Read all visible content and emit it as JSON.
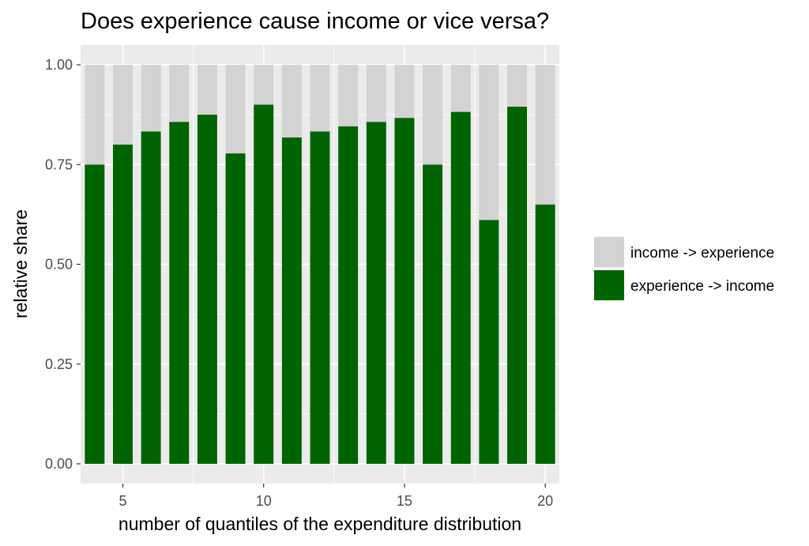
{
  "chart_data": {
    "type": "bar",
    "stacked": true,
    "title": "Does experience cause income or vice versa?",
    "xlabel": "number of quantiles of the expenditure distribution",
    "ylabel": "relative share",
    "x": [
      4,
      5,
      6,
      7,
      8,
      9,
      10,
      11,
      12,
      13,
      14,
      15,
      16,
      17,
      18,
      19,
      20
    ],
    "series": [
      {
        "name": "experience -> income",
        "color": "#006400",
        "values": [
          0.75,
          0.8,
          0.833,
          0.857,
          0.875,
          0.778,
          0.9,
          0.818,
          0.833,
          0.846,
          0.857,
          0.867,
          0.75,
          0.882,
          0.611,
          0.895,
          0.65
        ]
      },
      {
        "name": "income -> experience",
        "color": "#d3d3d3",
        "values": [
          0.25,
          0.2,
          0.167,
          0.143,
          0.125,
          0.222,
          0.1,
          0.182,
          0.167,
          0.154,
          0.143,
          0.133,
          0.25,
          0.118,
          0.389,
          0.105,
          0.35
        ]
      }
    ],
    "ylim": [
      0,
      1
    ],
    "xlim": [
      3.5,
      20.5
    ],
    "yticks": [
      0,
      0.25,
      0.5,
      0.75,
      1
    ],
    "ytick_labels": [
      "0.00",
      "0.25",
      "0.50",
      "0.75",
      "1.00"
    ],
    "xticks": [
      5,
      10,
      15,
      20
    ],
    "xtick_labels": [
      "5",
      "10",
      "15",
      "20"
    ],
    "legend": {
      "position": "right",
      "entries": [
        "income -> experience",
        "experience -> income"
      ]
    },
    "panel_background": "#ebebeb",
    "grid": true
  }
}
